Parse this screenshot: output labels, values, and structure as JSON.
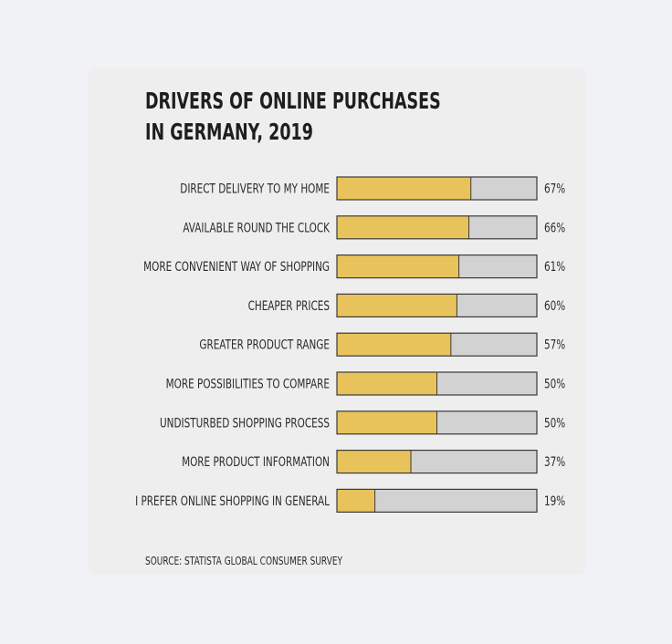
{
  "chart_data": {
    "type": "bar",
    "orientation": "horizontal",
    "title_lines": [
      "DRIVERS OF ONLINE PURCHASES",
      "IN GERMANY, 2019"
    ],
    "categories": [
      "DIRECT DELIVERY TO MY HOME",
      "AVAILABLE ROUND THE CLOCK",
      "MORE CONVENIENT WAY OF SHOPPING",
      "CHEAPER PRICES",
      "GREATER PRODUCT RANGE",
      "MORE POSSIBILITIES TO COMPARE",
      "UNDISTURBED SHOPPING PROCESS",
      "MORE PRODUCT INFORMATION",
      "I PREFER ONLINE SHOPPING IN GENERAL"
    ],
    "values": [
      67,
      66,
      61,
      60,
      57,
      50,
      50,
      37,
      19
    ],
    "value_labels": [
      "67%",
      "66%",
      "61%",
      "60%",
      "57%",
      "50%",
      "50%",
      "37%",
      "19%"
    ],
    "xlim": [
      0,
      100
    ],
    "grid": false,
    "source": "SOURCE: STATISTA GLOBAL CONSUMER SURVEY",
    "colors": {
      "bar_fill": "#e8c35c",
      "bar_track": "#d2d2d2",
      "bar_border": "#3a3a3a",
      "text": "#2a2a2a"
    }
  }
}
